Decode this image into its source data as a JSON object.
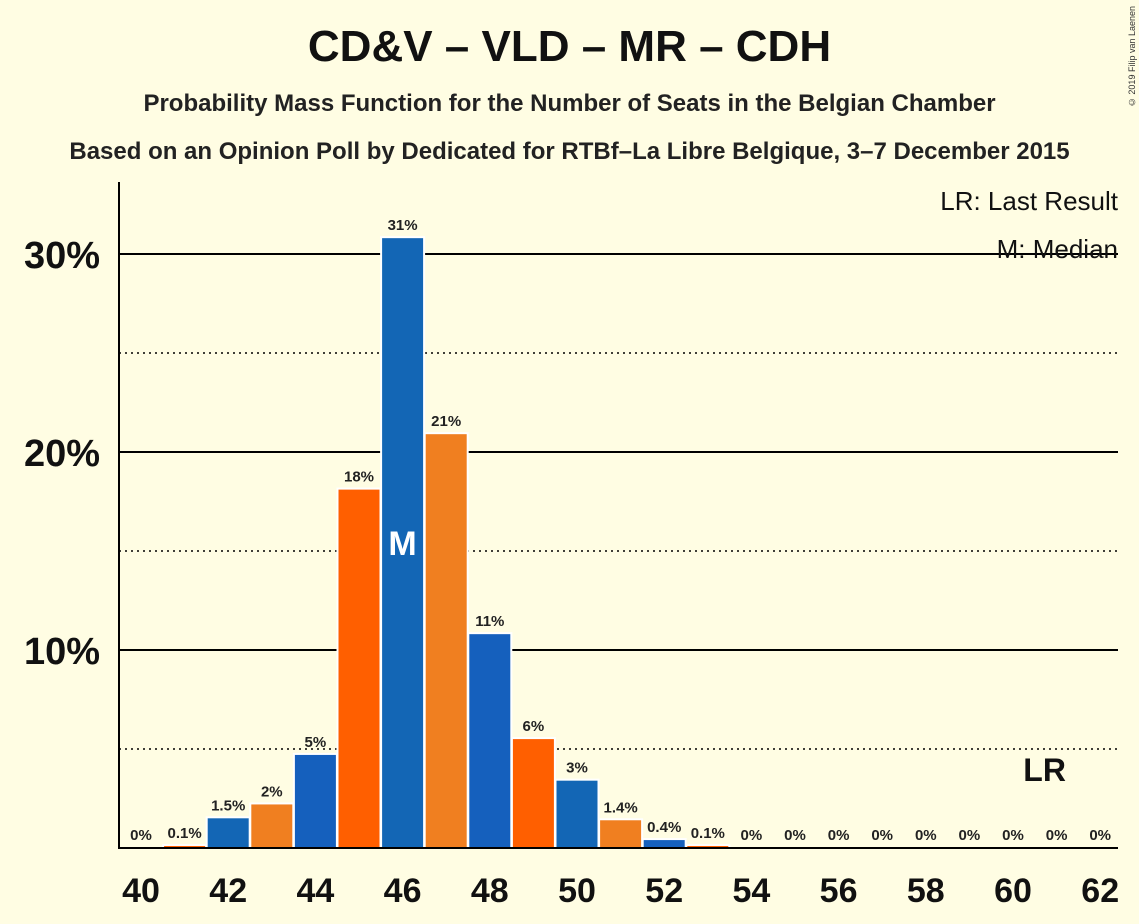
{
  "title": "CD&V – VLD – MR – CDH",
  "subtitle": "Probability Mass Function for the Number of Seats in the Belgian Chamber",
  "subtitle2": "Based on an Opinion Poll by Dedicated for RTBf–La Libre Belgique, 3–7 December 2015",
  "copyright": "© 2019 Filip van Laenen",
  "legend": {
    "last_result": "LR: Last Result",
    "median": "M: Median"
  },
  "markers": {
    "median_label": "M",
    "median_seat": 46,
    "lr_label": "LR",
    "lr_seat": 61
  },
  "colors": {
    "blue": "#1560BD",
    "orange": "#FF5F00",
    "blue_alt": "#1366B5",
    "orange_alt": "#F07F20"
  },
  "chart_data": {
    "type": "bar",
    "title": "CD&V – VLD – MR – CDH",
    "xlabel": "",
    "ylabel": "",
    "ylim": [
      0,
      33
    ],
    "y_ticks": [
      10,
      20,
      30
    ],
    "y_tick_labels": [
      "10%",
      "20%",
      "30%"
    ],
    "x_tick_labels": [
      "40",
      "42",
      "44",
      "46",
      "48",
      "50",
      "52",
      "54",
      "56",
      "58",
      "60",
      "62"
    ],
    "categories": [
      40,
      41,
      42,
      43,
      44,
      45,
      46,
      47,
      48,
      49,
      50,
      51,
      52,
      53,
      54,
      55,
      56,
      57,
      58,
      59,
      60,
      61,
      62
    ],
    "values": [
      0,
      0.1,
      1.5,
      2.2,
      4.7,
      18.1,
      30.8,
      20.9,
      10.8,
      5.5,
      3.4,
      1.4,
      0.4,
      0.1,
      0,
      0,
      0,
      0,
      0,
      0,
      0,
      0,
      0
    ],
    "labels": [
      "0%",
      "0.1%",
      "1.5%",
      "2%",
      "5%",
      "18%",
      "31%",
      "21%",
      "11%",
      "6%",
      "3%",
      "1.4%",
      "0.4%",
      "0.1%",
      "0%",
      "0%",
      "0%",
      "0%",
      "0%",
      "0%",
      "0%",
      "0%",
      "0%"
    ],
    "grid": "solid major lines at 10% steps, dotted minor lines at 5% steps"
  }
}
